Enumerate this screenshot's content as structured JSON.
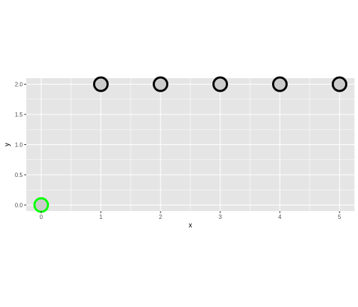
{
  "chart_data": {
    "type": "scatter",
    "title": "",
    "xlabel": "x",
    "ylabel": "y",
    "xlim": [
      -0.25,
      5.25
    ],
    "ylim": [
      -0.1,
      2.1
    ],
    "x_ticks": [
      0,
      1,
      2,
      3,
      4,
      5
    ],
    "x_tick_labels": [
      "0",
      "1",
      "2",
      "3",
      "4",
      "5"
    ],
    "y_ticks": [
      0,
      0.5,
      1,
      1.5,
      2
    ],
    "y_tick_labels": [
      "0.0",
      "0.5",
      "1.0",
      "1.5",
      "2.0"
    ],
    "grid": true,
    "panel_background": "#e5e5e5",
    "grid_color": "#ffffff",
    "points": [
      {
        "x": 0,
        "y": 0,
        "stroke": "#00ff00",
        "fill": "#cccccc"
      },
      {
        "x": 1,
        "y": 2,
        "stroke": "#000000",
        "fill": "#cccccc"
      },
      {
        "x": 2,
        "y": 2,
        "stroke": "#000000",
        "fill": "#cccccc"
      },
      {
        "x": 3,
        "y": 2,
        "stroke": "#000000",
        "fill": "#cccccc"
      },
      {
        "x": 4,
        "y": 2,
        "stroke": "#000000",
        "fill": "#cccccc"
      },
      {
        "x": 5,
        "y": 2,
        "stroke": "#000000",
        "fill": "#cccccc"
      }
    ]
  }
}
